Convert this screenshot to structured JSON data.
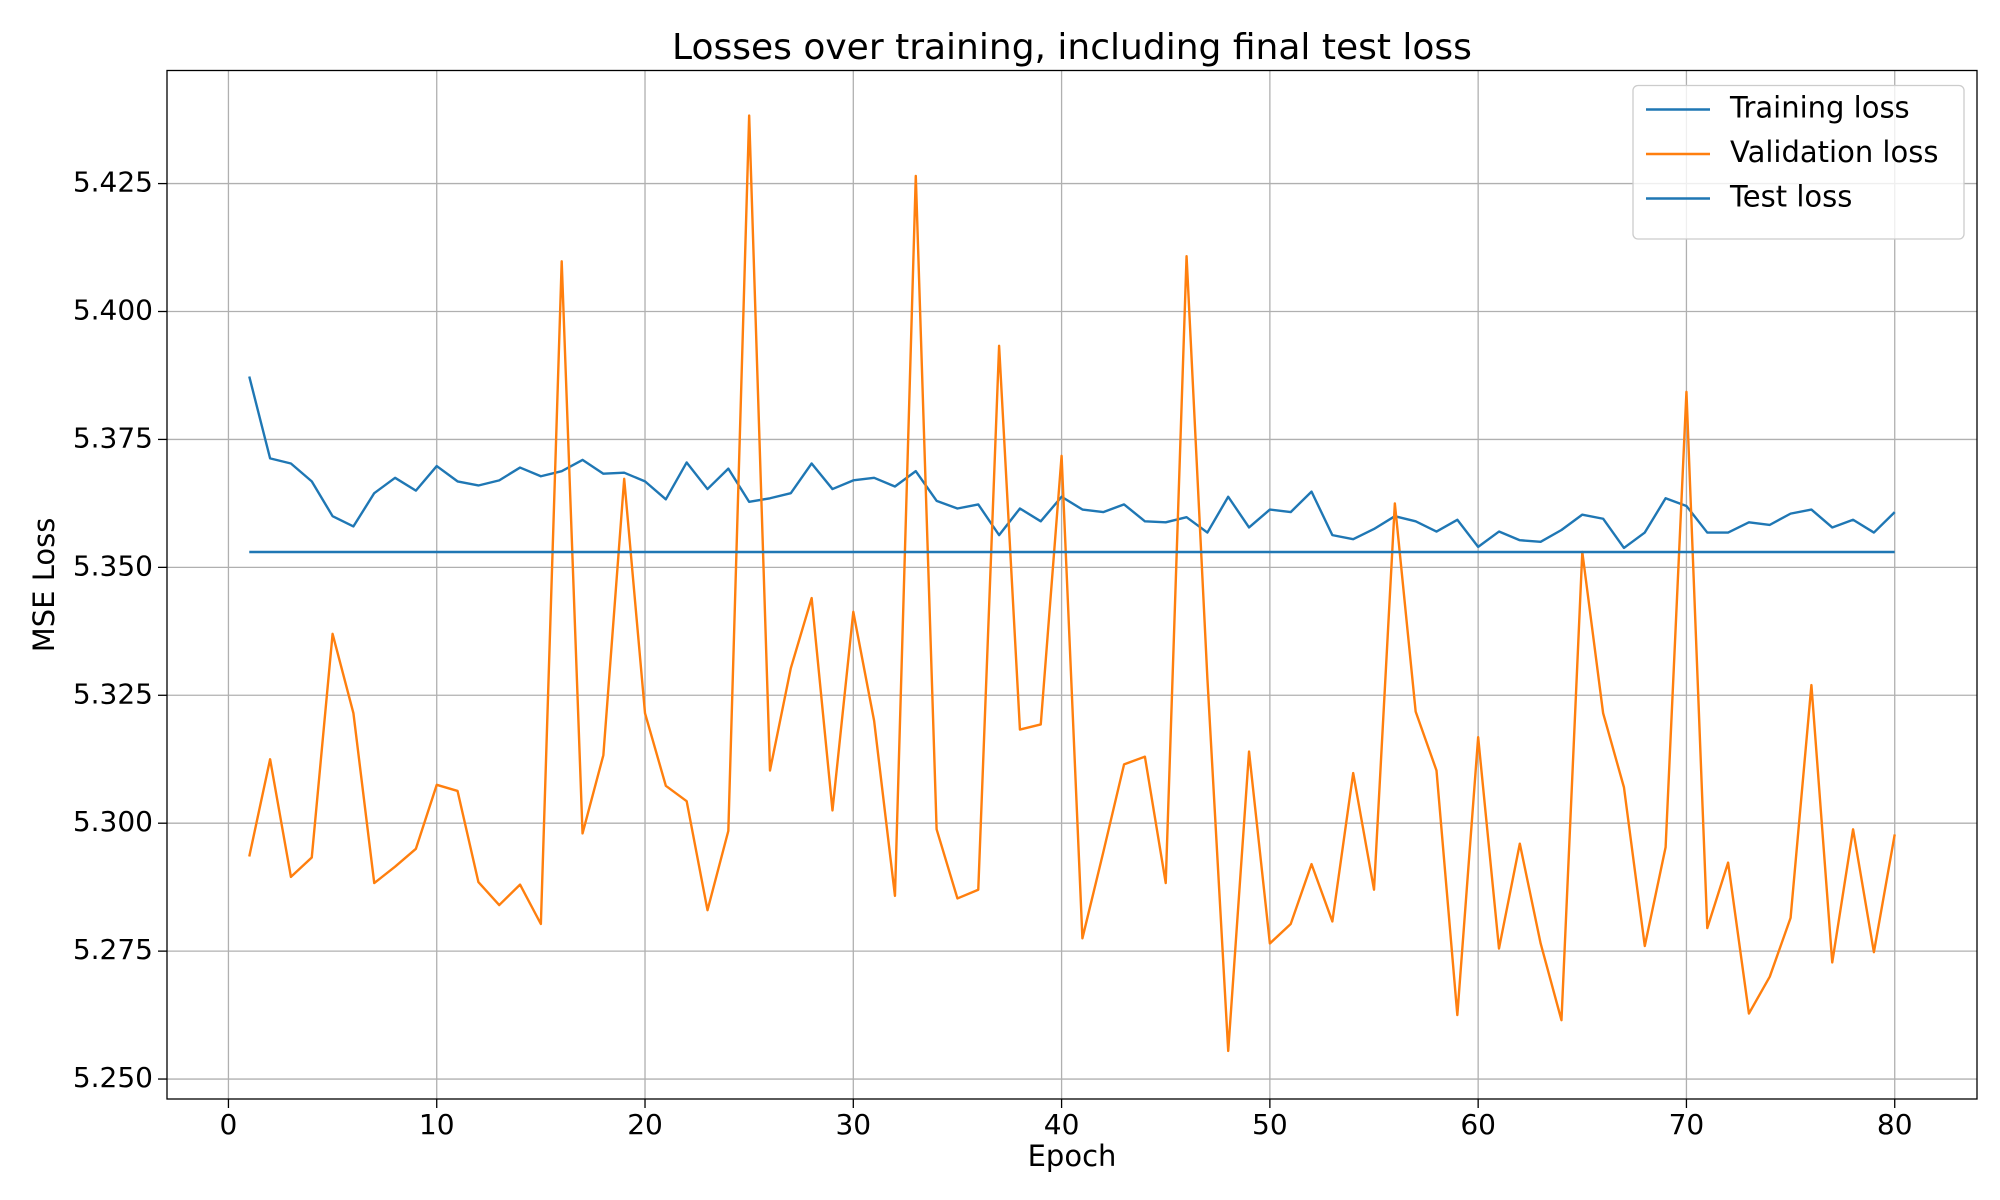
{
  "chart_data": {
    "type": "line",
    "title": "Losses over training, including final test loss",
    "xlabel": "Epoch",
    "ylabel": "MSE Loss",
    "x": [
      1,
      2,
      3,
      4,
      5,
      6,
      7,
      8,
      9,
      10,
      11,
      12,
      13,
      14,
      15,
      16,
      17,
      18,
      19,
      20,
      21,
      22,
      23,
      24,
      25,
      26,
      27,
      28,
      29,
      30,
      31,
      32,
      33,
      34,
      35,
      36,
      37,
      38,
      39,
      40,
      41,
      42,
      43,
      44,
      45,
      46,
      47,
      48,
      49,
      50,
      51,
      52,
      53,
      54,
      55,
      56,
      57,
      58,
      59,
      60,
      61,
      62,
      63,
      64,
      65,
      66,
      67,
      68,
      69,
      70,
      71,
      72,
      73,
      74,
      75,
      76,
      77,
      78,
      79,
      80
    ],
    "series": [
      {
        "name": "Training loss",
        "color": "#1f77b4",
        "values": [
          5.3873,
          5.3713,
          5.3703,
          5.3668,
          5.36,
          5.358,
          5.3645,
          5.3675,
          5.365,
          5.3698,
          5.3668,
          5.366,
          5.367,
          5.3695,
          5.3678,
          5.3688,
          5.371,
          5.3683,
          5.3685,
          5.3668,
          5.3633,
          5.3705,
          5.3653,
          5.3693,
          5.3628,
          5.3635,
          5.3645,
          5.3703,
          5.3653,
          5.367,
          5.3675,
          5.3658,
          5.3688,
          5.363,
          5.3615,
          5.3623,
          5.3563,
          5.3615,
          5.359,
          5.3638,
          5.3613,
          5.3608,
          5.3623,
          5.359,
          5.3588,
          5.3598,
          5.3568,
          5.3638,
          5.3578,
          5.3613,
          5.3608,
          5.3648,
          5.3563,
          5.3555,
          5.3575,
          5.36,
          5.359,
          5.357,
          5.3593,
          5.354,
          5.357,
          5.3553,
          5.355,
          5.3573,
          5.3603,
          5.3595,
          5.3538,
          5.3568,
          5.3635,
          5.362,
          5.3568,
          5.3568,
          5.3588,
          5.3583,
          5.3605,
          5.3613,
          5.3578,
          5.3593,
          5.3568,
          5.3608
        ]
      },
      {
        "name": "Validation loss",
        "color": "#ff7f0e",
        "values": [
          5.2935,
          5.3125,
          5.2895,
          5.2933,
          5.337,
          5.3215,
          5.2883,
          5.2915,
          5.295,
          5.3075,
          5.3063,
          5.2885,
          5.284,
          5.288,
          5.2803,
          5.4098,
          5.298,
          5.3133,
          5.3673,
          5.3215,
          5.3073,
          5.3043,
          5.283,
          5.2985,
          5.4383,
          5.3103,
          5.3303,
          5.344,
          5.3025,
          5.3413,
          5.32,
          5.2858,
          5.4265,
          5.2988,
          5.2853,
          5.287,
          5.3933,
          5.3183,
          5.3193,
          5.3718,
          5.2775,
          5.2943,
          5.3115,
          5.313,
          5.2883,
          5.4108,
          5.3283,
          5.2555,
          5.314,
          5.2765,
          5.2803,
          5.292,
          5.2808,
          5.3098,
          5.287,
          5.3625,
          5.3218,
          5.3103,
          5.2625,
          5.3168,
          5.2755,
          5.296,
          5.2765,
          5.2615,
          5.353,
          5.3215,
          5.307,
          5.276,
          5.2953,
          5.3843,
          5.2795,
          5.2923,
          5.2628,
          5.27,
          5.2815,
          5.327,
          5.2728,
          5.2988,
          5.2748,
          5.2978
        ]
      },
      {
        "name": "Test loss",
        "color": "#1f77b4",
        "values": [
          5.353,
          5.353,
          5.353,
          5.353,
          5.353,
          5.353,
          5.353,
          5.353,
          5.353,
          5.353,
          5.353,
          5.353,
          5.353,
          5.353,
          5.353,
          5.353,
          5.353,
          5.353,
          5.353,
          5.353,
          5.353,
          5.353,
          5.353,
          5.353,
          5.353,
          5.353,
          5.353,
          5.353,
          5.353,
          5.353,
          5.353,
          5.353,
          5.353,
          5.353,
          5.353,
          5.353,
          5.353,
          5.353,
          5.353,
          5.353,
          5.353,
          5.353,
          5.353,
          5.353,
          5.353,
          5.353,
          5.353,
          5.353,
          5.353,
          5.353,
          5.353,
          5.353,
          5.353,
          5.353,
          5.353,
          5.353,
          5.353,
          5.353,
          5.353,
          5.353,
          5.353,
          5.353,
          5.353,
          5.353,
          5.353,
          5.353,
          5.353,
          5.353,
          5.353,
          5.353,
          5.353,
          5.353,
          5.353,
          5.353,
          5.353,
          5.353,
          5.353,
          5.353,
          5.353,
          5.353
        ]
      }
    ],
    "xlim": [
      -2.95,
      83.95
    ],
    "xticks": [
      0,
      10,
      20,
      30,
      40,
      50,
      60,
      70,
      80
    ],
    "ylim": [
      5.2461,
      5.4471
    ],
    "yticks": [
      {
        "value": 5.25,
        "label": "5.250"
      },
      5.275,
      {
        "value": 5.3,
        "label": "5.300"
      },
      5.325,
      {
        "value": 5.35,
        "label": "5.350"
      },
      5.375,
      {
        "value": 5.4,
        "label": "5.400"
      },
      5.425
    ],
    "grid": true,
    "legend": "upper right"
  }
}
